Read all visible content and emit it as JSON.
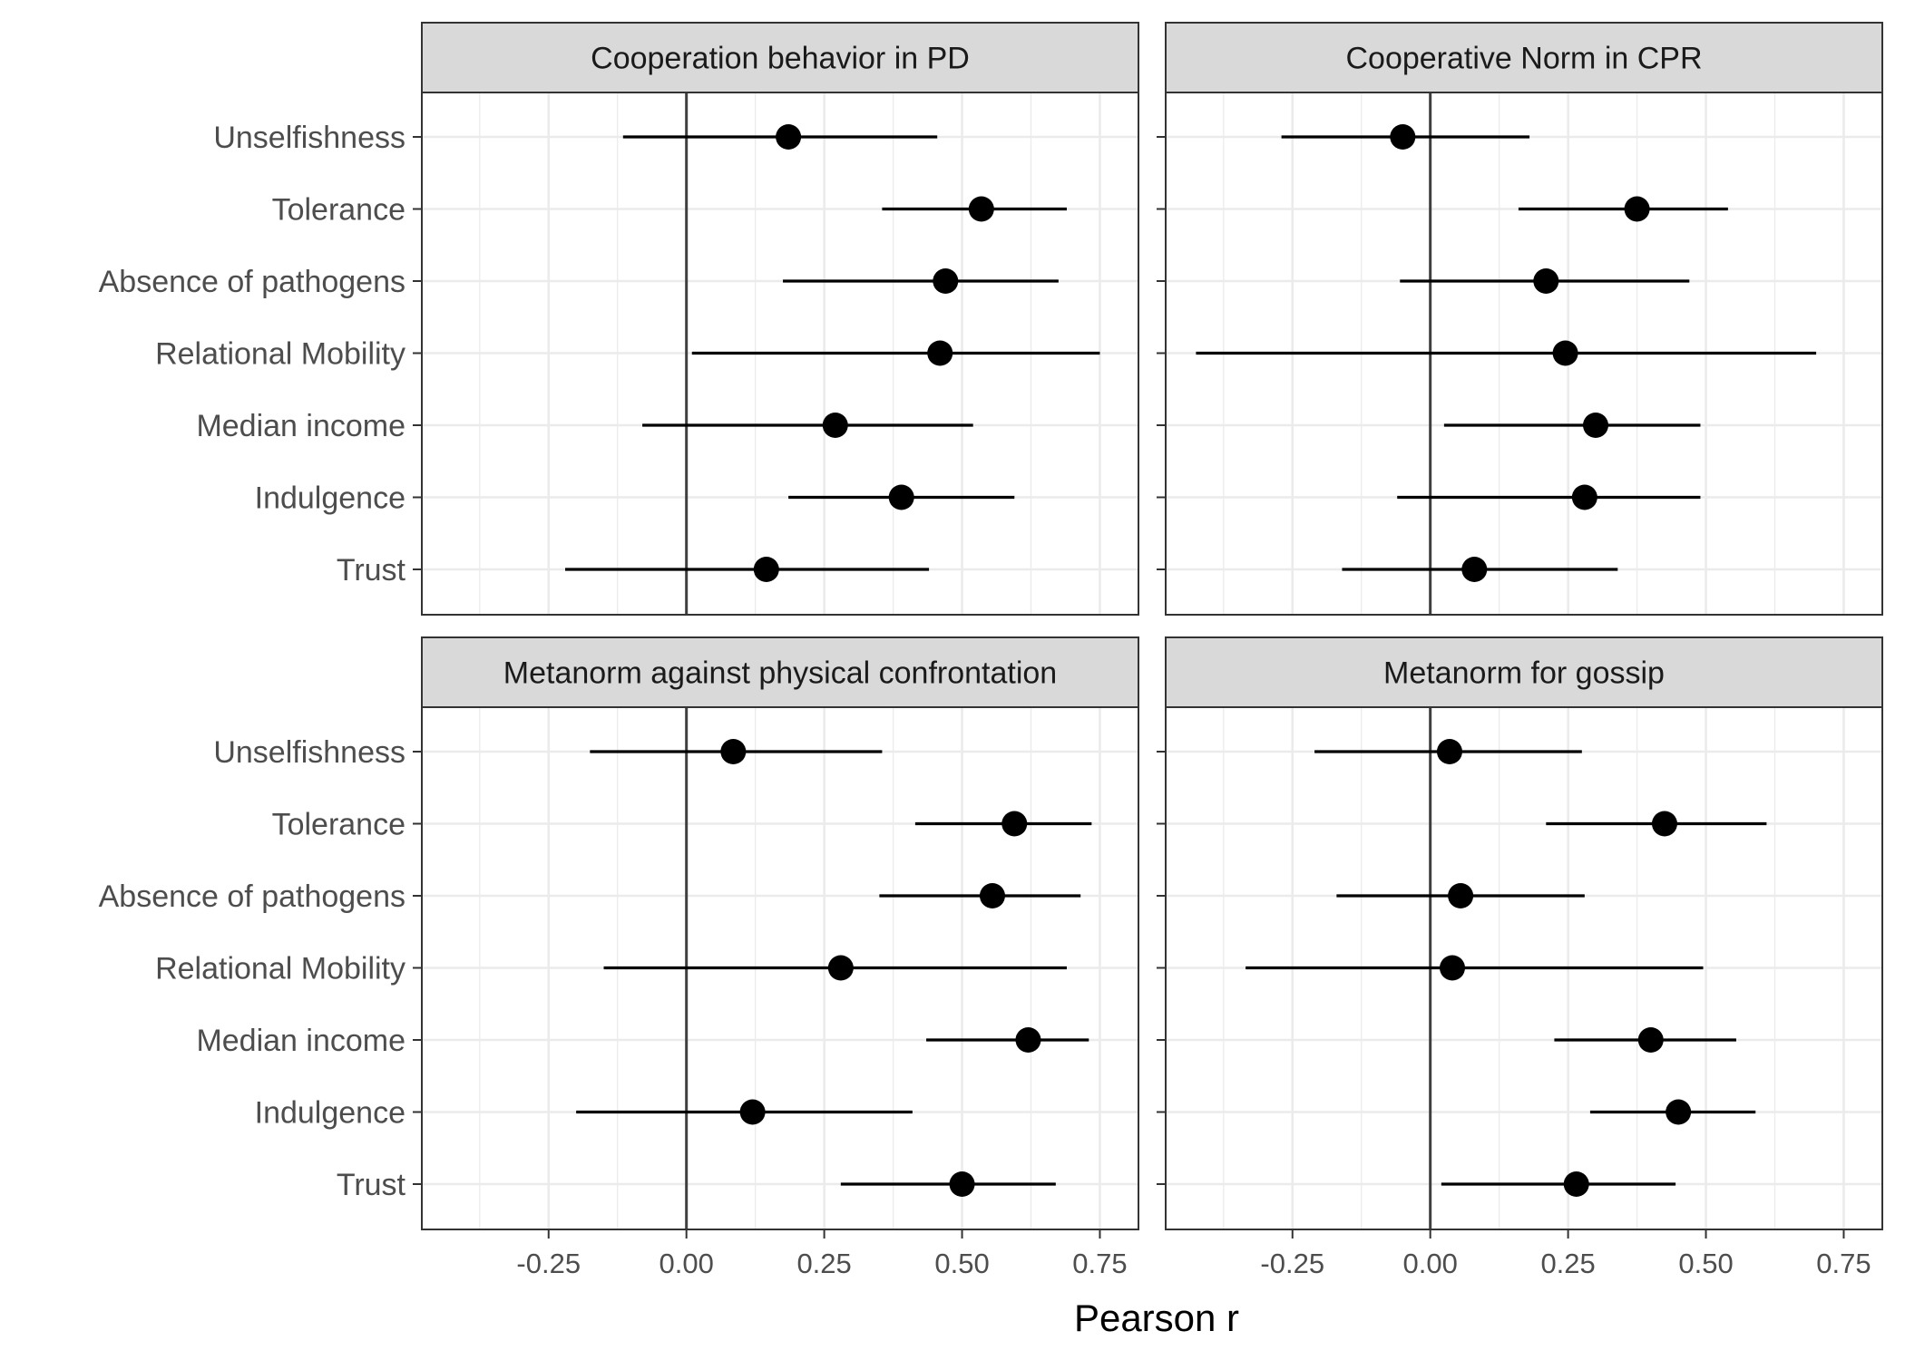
{
  "chart_data": {
    "type": "scatter",
    "variant": "dot-and-whisker, faceted 2x2",
    "xlabel": "Pearson r",
    "xlim": [
      -0.48,
      0.82
    ],
    "x_ticks": [
      -0.25,
      0.0,
      0.25,
      0.5,
      0.75
    ],
    "x_tick_labels": [
      "-0.25",
      "0.00",
      "0.25",
      "0.50",
      "0.75"
    ],
    "reference_line_x": 0,
    "grid": true,
    "categories": [
      "Unselfishness",
      "Tolerance",
      "Absence of pathogens",
      "Relational Mobility",
      "Median income",
      "Indulgence",
      "Trust"
    ],
    "panels": [
      {
        "title": "Cooperation behavior in PD",
        "points": [
          {
            "label": "Unselfishness",
            "r": 0.185,
            "lower": -0.115,
            "upper": 0.455
          },
          {
            "label": "Tolerance",
            "r": 0.535,
            "lower": 0.355,
            "upper": 0.69
          },
          {
            "label": "Absence of pathogens",
            "r": 0.47,
            "lower": 0.175,
            "upper": 0.675
          },
          {
            "label": "Relational Mobility",
            "r": 0.46,
            "lower": 0.01,
            "upper": 0.75
          },
          {
            "label": "Median income",
            "r": 0.27,
            "lower": -0.08,
            "upper": 0.52
          },
          {
            "label": "Indulgence",
            "r": 0.39,
            "lower": 0.185,
            "upper": 0.595
          },
          {
            "label": "Trust",
            "r": 0.145,
            "lower": -0.22,
            "upper": 0.44
          }
        ]
      },
      {
        "title": "Cooperative Norm in CPR",
        "points": [
          {
            "label": "Unselfishness",
            "r": -0.05,
            "lower": -0.27,
            "upper": 0.18
          },
          {
            "label": "Tolerance",
            "r": 0.375,
            "lower": 0.16,
            "upper": 0.54
          },
          {
            "label": "Absence of pathogens",
            "r": 0.21,
            "lower": -0.055,
            "upper": 0.47
          },
          {
            "label": "Relational Mobility",
            "r": 0.245,
            "lower": -0.425,
            "upper": 0.7
          },
          {
            "label": "Median income",
            "r": 0.3,
            "lower": 0.025,
            "upper": 0.49
          },
          {
            "label": "Indulgence",
            "r": 0.28,
            "lower": -0.06,
            "upper": 0.49
          },
          {
            "label": "Trust",
            "r": 0.08,
            "lower": -0.16,
            "upper": 0.34
          }
        ]
      },
      {
        "title": "Metanorm against physical confrontation",
        "points": [
          {
            "label": "Unselfishness",
            "r": 0.085,
            "lower": -0.175,
            "upper": 0.355
          },
          {
            "label": "Tolerance",
            "r": 0.595,
            "lower": 0.415,
            "upper": 0.735
          },
          {
            "label": "Absence of pathogens",
            "r": 0.555,
            "lower": 0.35,
            "upper": 0.715
          },
          {
            "label": "Relational Mobility",
            "r": 0.28,
            "lower": -0.15,
            "upper": 0.69
          },
          {
            "label": "Median income",
            "r": 0.62,
            "lower": 0.435,
            "upper": 0.73
          },
          {
            "label": "Indulgence",
            "r": 0.12,
            "lower": -0.2,
            "upper": 0.41
          },
          {
            "label": "Trust",
            "r": 0.5,
            "lower": 0.28,
            "upper": 0.67
          }
        ]
      },
      {
        "title": "Metanorm for gossip",
        "points": [
          {
            "label": "Unselfishness",
            "r": 0.035,
            "lower": -0.21,
            "upper": 0.275
          },
          {
            "label": "Tolerance",
            "r": 0.425,
            "lower": 0.21,
            "upper": 0.61
          },
          {
            "label": "Absence of pathogens",
            "r": 0.055,
            "lower": -0.17,
            "upper": 0.28
          },
          {
            "label": "Relational Mobility",
            "r": 0.04,
            "lower": -0.335,
            "upper": 0.495
          },
          {
            "label": "Median income",
            "r": 0.4,
            "lower": 0.225,
            "upper": 0.555
          },
          {
            "label": "Indulgence",
            "r": 0.45,
            "lower": 0.29,
            "upper": 0.59
          },
          {
            "label": "Trust",
            "r": 0.265,
            "lower": 0.02,
            "upper": 0.445
          }
        ]
      }
    ]
  },
  "colors": {
    "background": "#ffffff",
    "strip_fill": "#d9d9d9",
    "panel_border": "#333333",
    "grid_major": "#ebebeb",
    "reference_line": "#3f3f3f",
    "point": "#000000",
    "axis_text": "#4d4d4d"
  }
}
